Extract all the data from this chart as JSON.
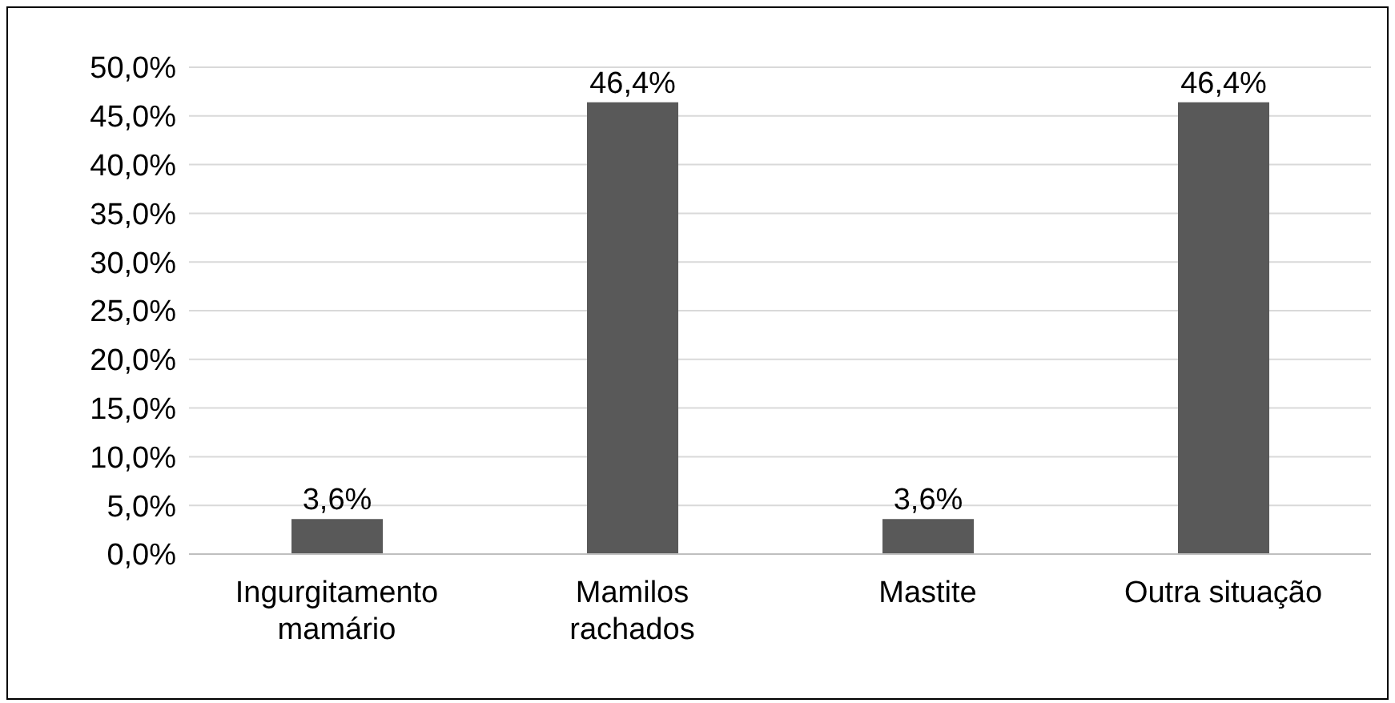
{
  "chart_data": {
    "type": "bar",
    "categories": [
      "Ingurgitamento mamário",
      "Mamilos rachados",
      "Mastite",
      "Outra situação"
    ],
    "values": [
      3.6,
      46.4,
      3.6,
      46.4
    ],
    "color": "#595959",
    "value_labels": [
      "3,6%",
      "46,4%",
      "3,6%",
      "46,4%"
    ],
    "ylim": [
      0,
      50
    ],
    "yticks": [
      {
        "value": 0,
        "label": "0,0%"
      },
      {
        "value": 5,
        "label": "5,0%"
      },
      {
        "value": 10,
        "label": "10,0%"
      },
      {
        "value": 15,
        "label": "15,0%"
      },
      {
        "value": 20,
        "label": "20,0%"
      },
      {
        "value": 25,
        "label": "25,0%"
      },
      {
        "value": 30,
        "label": "30,0%"
      },
      {
        "value": 35,
        "label": "35,0%"
      },
      {
        "value": 40,
        "label": "40,0%"
      },
      {
        "value": 45,
        "label": "45,0%"
      },
      {
        "value": 50,
        "label": "50,0%"
      }
    ],
    "grid": "y"
  }
}
